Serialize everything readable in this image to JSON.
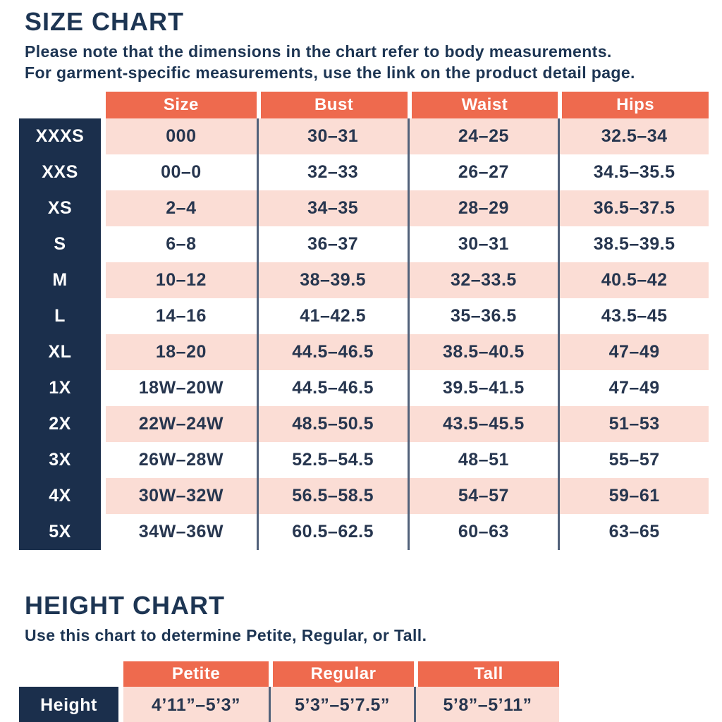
{
  "colors": {
    "accent_orange": "#ee6a4e",
    "navy": "#1b2f4c",
    "row_pink": "#fbddd5",
    "text_navy": "#1d3553",
    "divider": "#51617a"
  },
  "size_chart": {
    "title": "SIZE CHART",
    "subtitle_line1": "Please note that the dimensions in the chart refer to body measurements.",
    "subtitle_line2": "For garment-specific measurements, use the link on the product detail page.",
    "columns": [
      "Size",
      "Bust",
      "Waist",
      "Hips"
    ],
    "rows": [
      {
        "label": "XXXS",
        "size": "000",
        "bust": "30–31",
        "waist": "24–25",
        "hips": "32.5–34"
      },
      {
        "label": "XXS",
        "size": "00–0",
        "bust": "32–33",
        "waist": "26–27",
        "hips": "34.5–35.5"
      },
      {
        "label": "XS",
        "size": "2–4",
        "bust": "34–35",
        "waist": "28–29",
        "hips": "36.5–37.5"
      },
      {
        "label": "S",
        "size": "6–8",
        "bust": "36–37",
        "waist": "30–31",
        "hips": "38.5–39.5"
      },
      {
        "label": "M",
        "size": "10–12",
        "bust": "38–39.5",
        "waist": "32–33.5",
        "hips": "40.5–42"
      },
      {
        "label": "L",
        "size": "14–16",
        "bust": "41–42.5",
        "waist": "35–36.5",
        "hips": "43.5–45"
      },
      {
        "label": "XL",
        "size": "18–20",
        "bust": "44.5–46.5",
        "waist": "38.5–40.5",
        "hips": "47–49"
      },
      {
        "label": "1X",
        "size": "18W–20W",
        "bust": "44.5–46.5",
        "waist": "39.5–41.5",
        "hips": "47–49"
      },
      {
        "label": "2X",
        "size": "22W–24W",
        "bust": "48.5–50.5",
        "waist": "43.5–45.5",
        "hips": "51–53"
      },
      {
        "label": "3X",
        "size": "26W–28W",
        "bust": "52.5–54.5",
        "waist": "48–51",
        "hips": "55–57"
      },
      {
        "label": "4X",
        "size": "30W–32W",
        "bust": "56.5–58.5",
        "waist": "54–57",
        "hips": "59–61"
      },
      {
        "label": "5X",
        "size": "34W–36W",
        "bust": "60.5–62.5",
        "waist": "60–63",
        "hips": "63–65"
      }
    ]
  },
  "height_chart": {
    "title": "HEIGHT CHART",
    "subtitle": "Use this chart to determine Petite, Regular, or Tall.",
    "columns": [
      "Petite",
      "Regular",
      "Tall"
    ],
    "row_label": "Height",
    "values": [
      "4’11”–5’3”",
      "5’3”–5’7.5”",
      "5’8”–5’11”"
    ]
  }
}
